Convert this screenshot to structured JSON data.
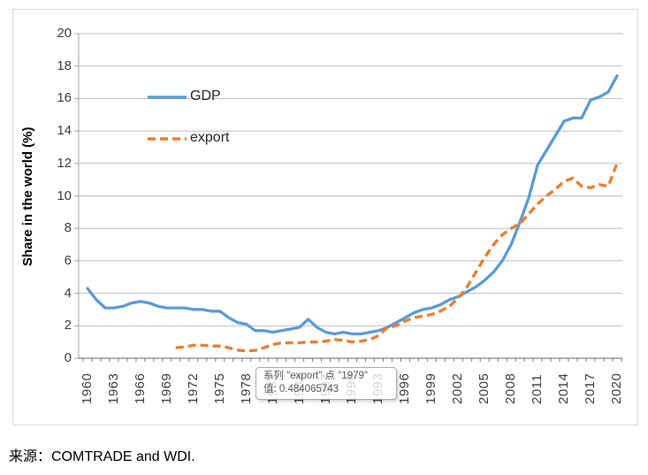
{
  "source_note": "来源：COMTRADE and WDI.",
  "tooltip": {
    "line1": "系列 \"export\" 点 \"1979\"",
    "line2": "值: 0.484065743"
  },
  "colors": {
    "gdp_line": "#5B9BD5",
    "export_line": "#ED7D31",
    "gridline": "#BFBFBF",
    "y_axis_line": "#A6A6A6",
    "x_axis_line": "#808080",
    "tick_label": "#404040",
    "tooltip_text": "#595959",
    "tooltip_border": "#ABABAB"
  },
  "chart_data": {
    "type": "line",
    "title": "",
    "xlabel": "",
    "ylabel": "Share in the world (%)",
    "ylim": [
      0,
      20
    ],
    "ytick_step": 2,
    "ytick_labels": [
      "0",
      "2",
      "4",
      "6",
      "8",
      "10",
      "12",
      "14",
      "16",
      "18",
      "20"
    ],
    "xtick_labels": [
      "1960",
      "1963",
      "1966",
      "1969",
      "1972",
      "1975",
      "1978",
      "1981",
      "1984",
      "1987",
      "1990",
      "1993",
      "1996",
      "1999",
      "2002",
      "2005",
      "2008",
      "2011",
      "2014",
      "2017",
      "2020"
    ],
    "grid": "horizontal",
    "legend_position": "inside-top-left",
    "x": [
      1960,
      1961,
      1962,
      1963,
      1964,
      1965,
      1966,
      1967,
      1968,
      1969,
      1970,
      1971,
      1972,
      1973,
      1974,
      1975,
      1976,
      1977,
      1978,
      1979,
      1980,
      1981,
      1982,
      1983,
      1984,
      1985,
      1986,
      1987,
      1988,
      1989,
      1990,
      1991,
      1992,
      1993,
      1994,
      1995,
      1996,
      1997,
      1998,
      1999,
      2000,
      2001,
      2002,
      2003,
      2004,
      2005,
      2006,
      2007,
      2008,
      2009,
      2010,
      2011,
      2012,
      2013,
      2014,
      2015,
      2016,
      2017,
      2018,
      2019,
      2020
    ],
    "series": [
      {
        "name": "GDP",
        "style": "solid",
        "color": "#5B9BD5",
        "values": [
          4.3,
          3.6,
          3.1,
          3.1,
          3.2,
          3.4,
          3.5,
          3.4,
          3.2,
          3.1,
          3.1,
          3.1,
          3.0,
          3.0,
          2.9,
          2.9,
          2.5,
          2.2,
          2.1,
          1.7,
          1.7,
          1.6,
          1.7,
          1.8,
          1.9,
          2.4,
          1.9,
          1.6,
          1.5,
          1.6,
          1.5,
          1.5,
          1.6,
          1.7,
          1.9,
          2.2,
          2.5,
          2.8,
          3.0,
          3.1,
          3.3,
          3.6,
          3.8,
          4.1,
          4.4,
          4.8,
          5.3,
          6.0,
          7.0,
          8.4,
          9.9,
          11.9,
          12.8,
          13.7,
          14.6,
          14.8,
          14.8,
          15.9,
          16.1,
          16.4,
          17.4
        ]
      },
      {
        "name": "export",
        "style": "dashed",
        "color": "#ED7D31",
        "values": [
          null,
          null,
          null,
          null,
          null,
          null,
          null,
          null,
          null,
          null,
          0.65,
          0.7,
          0.8,
          0.8,
          0.75,
          0.75,
          0.65,
          0.5,
          0.45,
          0.484,
          0.65,
          0.85,
          0.95,
          0.95,
          0.95,
          1.0,
          1.0,
          1.05,
          1.15,
          1.1,
          1.0,
          1.05,
          1.15,
          1.4,
          1.9,
          2.0,
          2.3,
          2.5,
          2.6,
          2.7,
          2.9,
          3.2,
          3.7,
          4.4,
          5.3,
          6.2,
          7.0,
          7.6,
          8.0,
          8.3,
          8.9,
          9.5,
          10.0,
          10.4,
          10.9,
          11.1,
          10.6,
          10.5,
          10.7,
          10.6,
          12.0
        ]
      }
    ],
    "highlighted_point": {
      "series": "export",
      "x": 1979,
      "value": 0.484065743
    }
  }
}
